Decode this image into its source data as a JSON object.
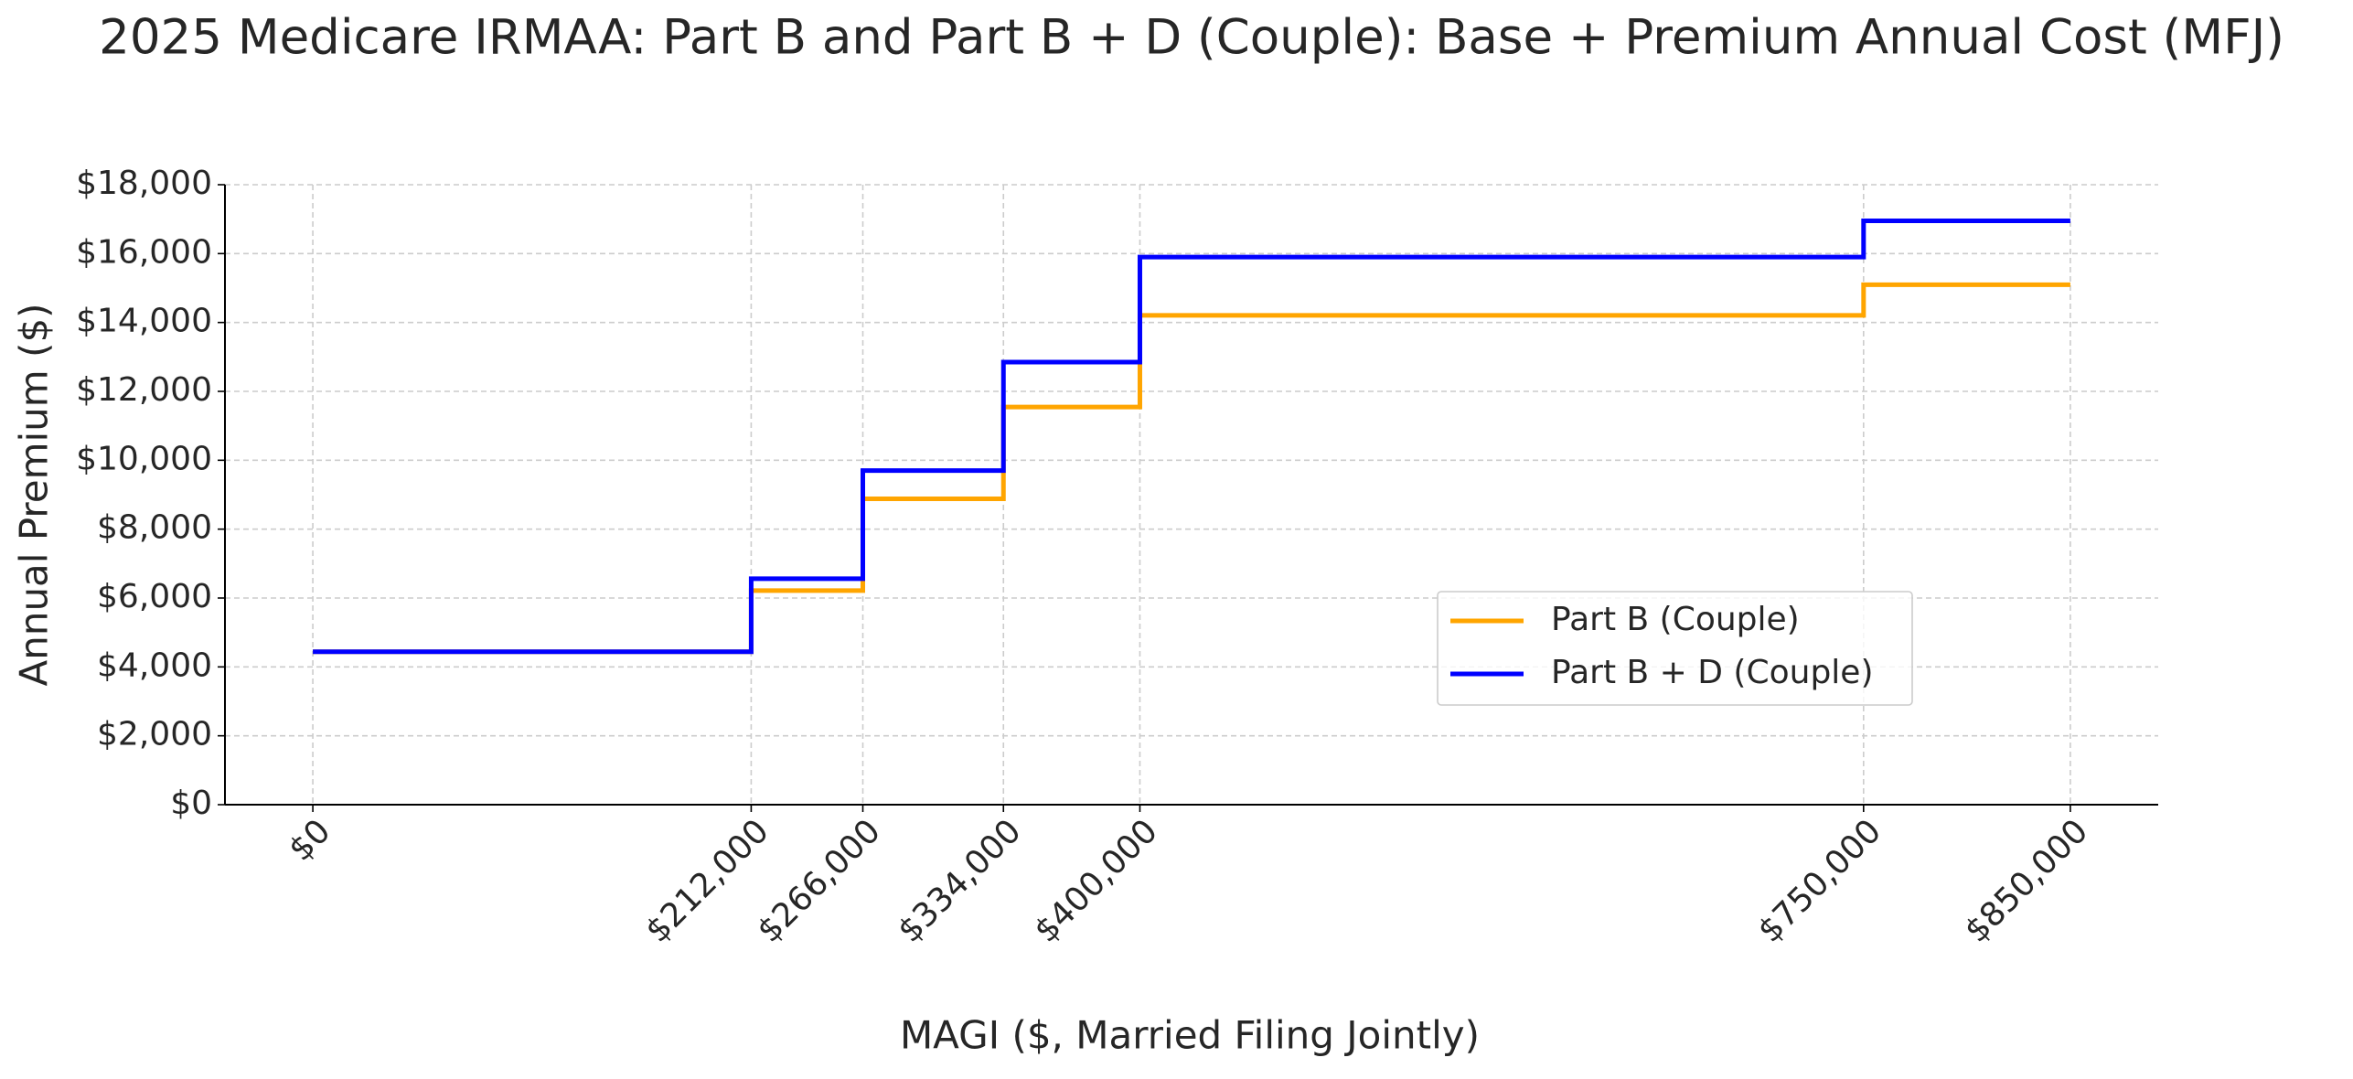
{
  "chart_data": {
    "type": "line",
    "step": "post",
    "title": "2025 Medicare IRMAA: Part B and Part B + D (Couple): Base + Premium Annual Cost (MFJ)",
    "xlabel": "MAGI ($, Married Filing Jointly)",
    "ylabel": "Annual Premium ($)",
    "x": [
      0,
      212000,
      266000,
      334000,
      400000,
      750000,
      850000
    ],
    "series": [
      {
        "name": "Part B (Couple)",
        "color": "#ffa500",
        "values": [
          4440,
          6216,
          8880,
          11544,
          14208,
          15096,
          15096
        ]
      },
      {
        "name": "Part B + D (Couple)",
        "color": "#0000ff",
        "values": [
          4440,
          6560,
          9700,
          12850,
          15900,
          16950,
          16950
        ]
      }
    ],
    "xlim": [
      -42500,
      892500
    ],
    "xticks": [
      {
        "value": 0,
        "label": "$0"
      },
      {
        "value": 212000,
        "label": "$212,000"
      },
      {
        "value": 266000,
        "label": "$266,000"
      },
      {
        "value": 334000,
        "label": "$334,000"
      },
      {
        "value": 400000,
        "label": "$400,000"
      },
      {
        "value": 750000,
        "label": "$750,000"
      },
      {
        "value": 850000,
        "label": "$850,000"
      }
    ],
    "ylim": [
      0,
      18000
    ],
    "yticks": [
      {
        "value": 0,
        "label": "$0"
      },
      {
        "value": 2000,
        "label": "$2,000"
      },
      {
        "value": 4000,
        "label": "$4,000"
      },
      {
        "value": 6000,
        "label": "$6,000"
      },
      {
        "value": 8000,
        "label": "$8,000"
      },
      {
        "value": 10000,
        "label": "$10,000"
      },
      {
        "value": 12000,
        "label": "$12,000"
      },
      {
        "value": 14000,
        "label": "$14,000"
      },
      {
        "value": 16000,
        "label": "$16,000"
      },
      {
        "value": 18000,
        "label": "$18,000"
      }
    ],
    "grid": true,
    "legend": "best"
  }
}
